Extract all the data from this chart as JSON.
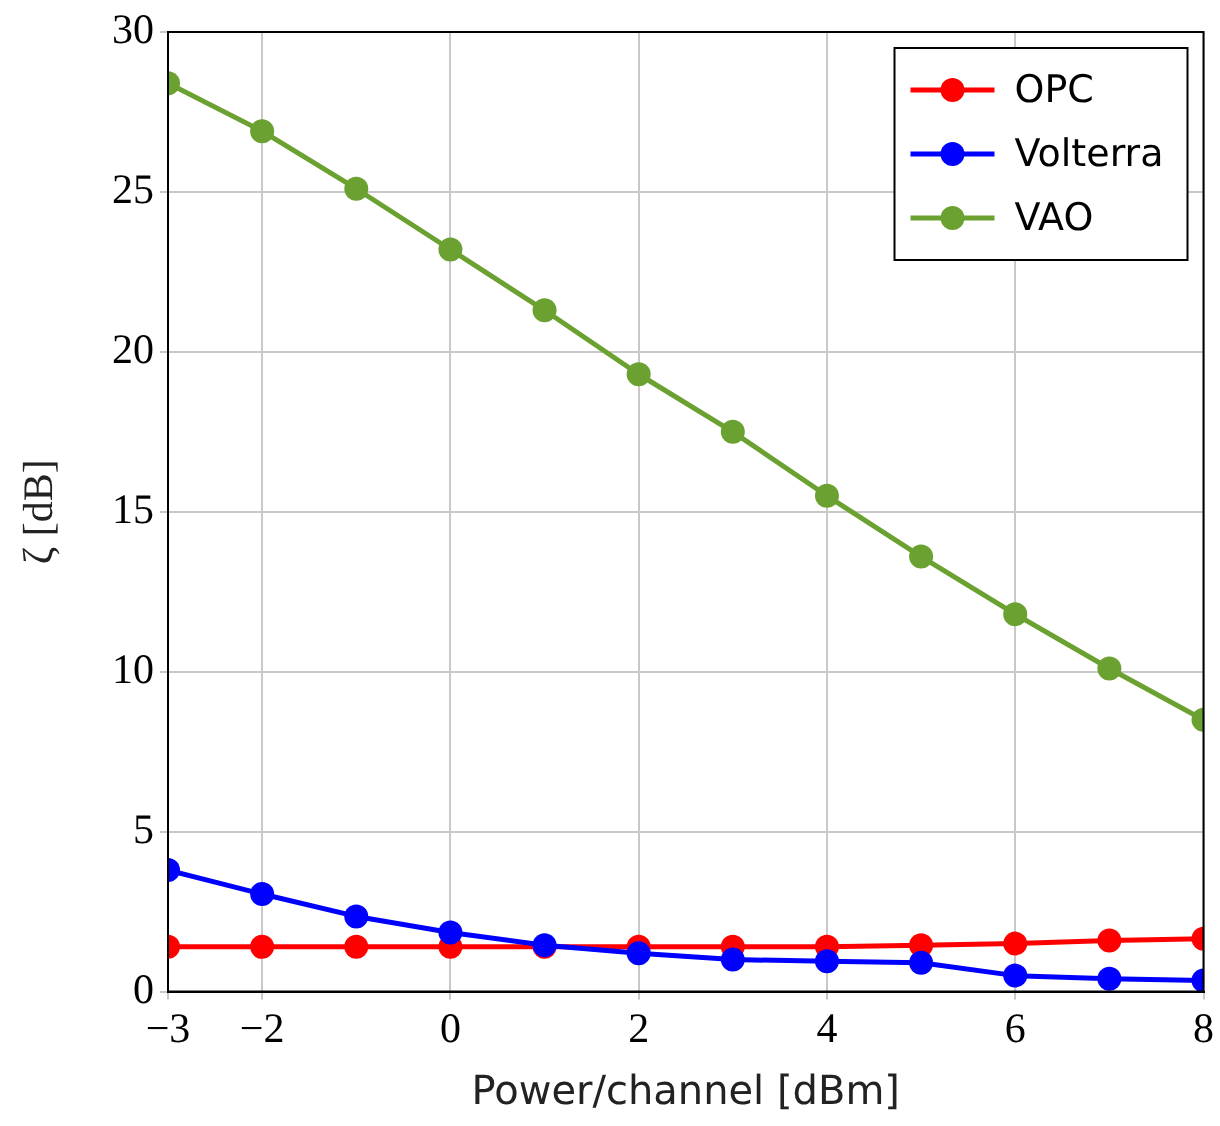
{
  "chart_data": {
    "type": "line",
    "xlabel": "Power/channel [dBm]",
    "ylabel": "ζ [dB]",
    "x": [
      -3,
      -2,
      -1,
      0,
      1,
      2,
      3,
      4,
      5,
      6,
      7,
      8
    ],
    "xlim": [
      -3,
      8
    ],
    "xticks": [
      {
        "value": -3,
        "label": "−3"
      },
      {
        "value": -2,
        "label": "−2"
      },
      0,
      2,
      4,
      6,
      8
    ],
    "ylim": [
      0,
      30
    ],
    "yticks": [
      0,
      5,
      10,
      15,
      20,
      25,
      30
    ],
    "grid": true,
    "legend": "top right",
    "marker": "circle",
    "line_style": "solid",
    "series": [
      {
        "name": "OPC",
        "color": "#ff0000",
        "values": [
          1.4,
          1.4,
          1.4,
          1.4,
          1.4,
          1.4,
          1.4,
          1.4,
          1.45,
          1.5,
          1.6,
          1.65
        ]
      },
      {
        "name": "Volterra",
        "color": "#0000ff",
        "values": [
          3.8,
          3.05,
          2.35,
          1.85,
          1.45,
          1.2,
          1.0,
          0.95,
          0.9,
          0.5,
          0.4,
          0.35
        ]
      },
      {
        "name": "VAO",
        "color": "#6ba130",
        "values": [
          28.4,
          26.9,
          25.1,
          23.2,
          21.3,
          19.3,
          17.5,
          15.5,
          13.6,
          11.8,
          10.1,
          8.5
        ]
      }
    ]
  }
}
